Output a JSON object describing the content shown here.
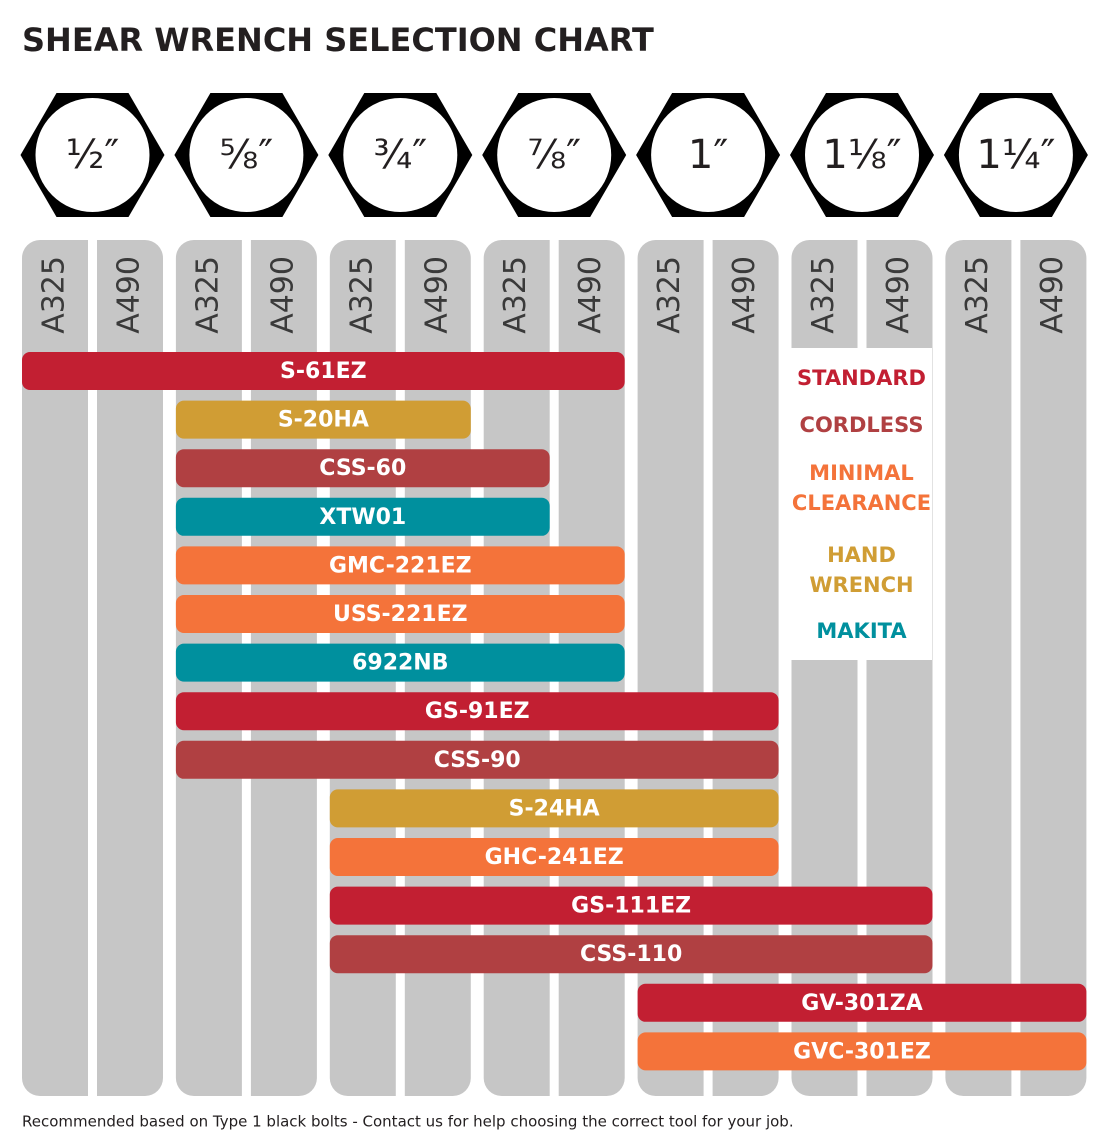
{
  "title": "SHEAR WRENCH SELECTION CHART",
  "grades": [
    "A325",
    "A490"
  ],
  "sizes": [
    {
      "value": 0.5,
      "label": "½″"
    },
    {
      "value": 0.625,
      "label": "⅝″"
    },
    {
      "value": 0.75,
      "label": "¾″"
    },
    {
      "value": 0.875,
      "label": "⅞″"
    },
    {
      "value": 1,
      "label": "1″"
    },
    {
      "value": 1.125,
      "label": "1⅛″"
    },
    {
      "value": 1.25,
      "label": "1¼″"
    }
  ],
  "legend": [
    {
      "label": "STANDARD",
      "color": "#c21f32"
    },
    {
      "label": "CORDLESS",
      "color": "#b04042"
    },
    {
      "label": "MINIMAL CLEARANCE",
      "color": "#f4733a"
    },
    {
      "label": "HAND WRENCH",
      "color": "#d09d34"
    },
    {
      "label": "MAKITA",
      "color": "#00909e"
    }
  ],
  "tools": [
    {
      "label": "S-61EZ",
      "color": "#c21f32",
      "from": {
        "size": 0.5,
        "grade": "A325"
      },
      "to": {
        "size": 0.875,
        "grade": "A490"
      }
    },
    {
      "label": "S-20HA",
      "color": "#d09d34",
      "from": {
        "size": 0.625,
        "grade": "A325"
      },
      "to": {
        "size": 0.75,
        "grade": "A490"
      }
    },
    {
      "label": "CSS-60",
      "color": "#b04042",
      "from": {
        "size": 0.625,
        "grade": "A325"
      },
      "to": {
        "size": 0.875,
        "grade": "A325"
      }
    },
    {
      "label": "XTW01",
      "color": "#00909e",
      "from": {
        "size": 0.625,
        "grade": "A325"
      },
      "to": {
        "size": 0.875,
        "grade": "A325"
      }
    },
    {
      "label": "GMC-221EZ",
      "color": "#f4733a",
      "from": {
        "size": 0.625,
        "grade": "A325"
      },
      "to": {
        "size": 0.875,
        "grade": "A490"
      }
    },
    {
      "label": "USS-221EZ",
      "color": "#f4733a",
      "from": {
        "size": 0.625,
        "grade": "A325"
      },
      "to": {
        "size": 0.875,
        "grade": "A490"
      }
    },
    {
      "label": "6922NB",
      "color": "#00909e",
      "from": {
        "size": 0.625,
        "grade": "A325"
      },
      "to": {
        "size": 0.875,
        "grade": "A490"
      }
    },
    {
      "label": "GS-91EZ",
      "color": "#c21f32",
      "from": {
        "size": 0.625,
        "grade": "A325"
      },
      "to": {
        "size": 1,
        "grade": "A490"
      }
    },
    {
      "label": "CSS-90",
      "color": "#b04042",
      "from": {
        "size": 0.625,
        "grade": "A325"
      },
      "to": {
        "size": 1,
        "grade": "A490"
      }
    },
    {
      "label": "S-24HA",
      "color": "#d09d34",
      "from": {
        "size": 0.75,
        "grade": "A325"
      },
      "to": {
        "size": 1,
        "grade": "A490"
      }
    },
    {
      "label": "GHC-241EZ",
      "color": "#f4733a",
      "from": {
        "size": 0.75,
        "grade": "A325"
      },
      "to": {
        "size": 1,
        "grade": "A490"
      }
    },
    {
      "label": "GS-111EZ",
      "color": "#c21f32",
      "from": {
        "size": 0.75,
        "grade": "A325"
      },
      "to": {
        "size": 1.125,
        "grade": "A490"
      }
    },
    {
      "label": "CSS-110",
      "color": "#b04042",
      "from": {
        "size": 0.75,
        "grade": "A325"
      },
      "to": {
        "size": 1.125,
        "grade": "A490"
      }
    },
    {
      "label": "GV-301ZA",
      "color": "#c21f32",
      "from": {
        "size": 1,
        "grade": "A325"
      },
      "to": {
        "size": 1.25,
        "grade": "A490"
      }
    },
    {
      "label": "GVC-301EZ",
      "color": "#f4733a",
      "from": {
        "size": 1,
        "grade": "A325"
      },
      "to": {
        "size": 1.25,
        "grade": "A490"
      }
    }
  ],
  "footnote": "Recommended based on Type 1 black bolts - Contact us for help choosing the correct tool for your job."
}
